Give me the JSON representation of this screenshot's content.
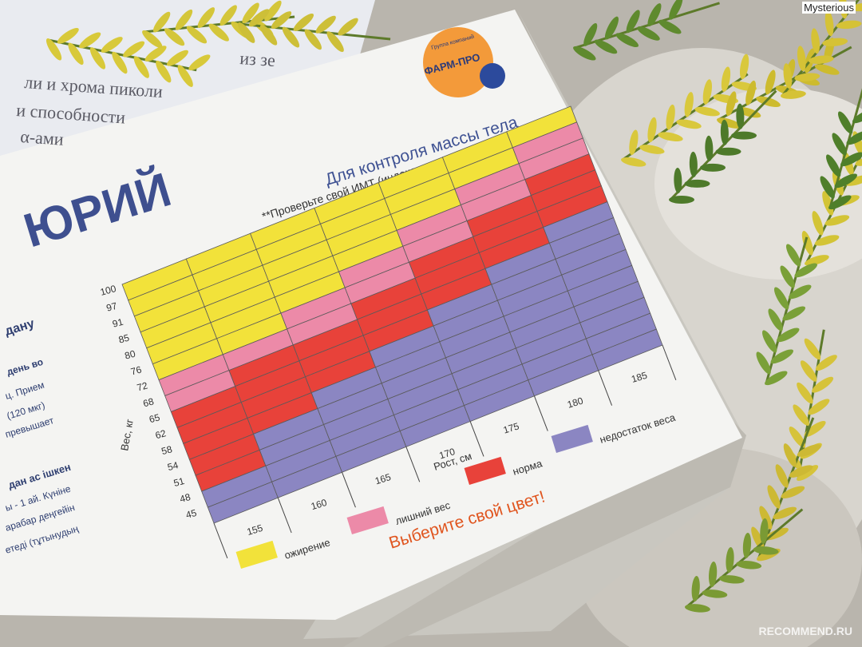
{
  "watermark": {
    "top_right": "Mysterious",
    "bottom_right": "RECOMMEND.RU"
  },
  "box": {
    "brand": {
      "line1": "Группа компаний",
      "line2": "ФАРМ-ПРО"
    },
    "product_name_fragment": "ЮРИЙ",
    "left_text": [
      "дану",
      "день во",
      "ц. Прием",
      "(120 мкг)",
      "превышает",
      "дан ас ішкен",
      "ы - 1 ай. Күніне",
      "арабар деңгейін",
      "етеді (тұтынудың"
    ],
    "background_book_text": [
      "из зе",
      "ли и хрома пиколи",
      "и способности",
      "α-ами"
    ]
  },
  "chart_data": {
    "type": "heatmap",
    "title": "Для контроля массы тела",
    "subtitle": "**Проверьте свой ИМТ (индекс массы тела)",
    "xlabel": "Рост, см",
    "ylabel": "Вес, кг",
    "x_ticks": [
      "155",
      "160",
      "165",
      "170",
      "175",
      "180",
      "185"
    ],
    "y_ticks": [
      "45",
      "48",
      "51",
      "54",
      "58",
      "62",
      "65",
      "68",
      "72",
      "76",
      "80",
      "85",
      "91",
      "97",
      "100"
    ],
    "legend": [
      {
        "label": "ожирение",
        "color": "#f2e23a"
      },
      {
        "label": "лишний вес",
        "color": "#ec8aa8"
      },
      {
        "label": "норма",
        "color": "#e8423a"
      },
      {
        "label": "недостаток веса",
        "color": "#8b86c2"
      }
    ],
    "callout": "Выберите свой цвет!",
    "band_boundaries_rows_from_top": {
      "obesity_until": [
        6,
        6,
        5,
        4,
        3,
        2,
        1
      ],
      "overweight_until": [
        8,
        7,
        7,
        6,
        5,
        4,
        3
      ],
      "normal_until": [
        13,
        11,
        10,
        9,
        8,
        7,
        6
      ]
    }
  }
}
